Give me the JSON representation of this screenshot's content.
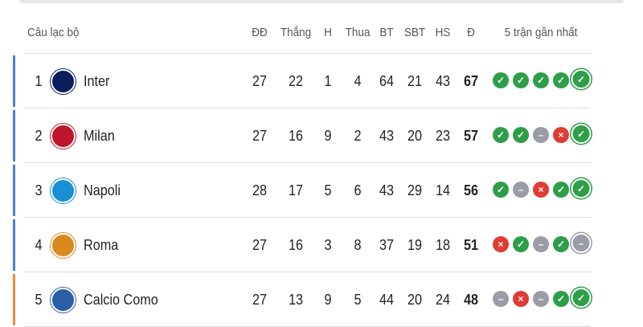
{
  "header": {
    "club": "Câu lạc bộ",
    "played": "ĐĐ",
    "won": "Thắng",
    "drawn": "H",
    "lost": "Thua",
    "gf": "BT",
    "ga": "SBT",
    "gd": "HS",
    "points": "Đ",
    "form": "5 trận gần nhất"
  },
  "colors": {
    "win": "#2e9e48",
    "draw": "#9a9ca6",
    "loss": "#e03b35",
    "champions": "#4a7fd6",
    "europa": "#f08a3c"
  },
  "rows": [
    {
      "pos": "1",
      "name": "Inter",
      "played": "27",
      "won": "22",
      "drawn": "1",
      "lost": "4",
      "gf": "64",
      "ga": "21",
      "gd": "43",
      "points": "67",
      "form": [
        "W",
        "W",
        "W",
        "W",
        "W"
      ],
      "zone": "champions",
      "logo_color": "#0a1e5e"
    },
    {
      "pos": "2",
      "name": "Milan",
      "played": "27",
      "won": "16",
      "drawn": "9",
      "lost": "2",
      "gf": "43",
      "ga": "20",
      "gd": "23",
      "points": "57",
      "form": [
        "W",
        "W",
        "D",
        "L",
        "W"
      ],
      "zone": "champions",
      "logo_color": "#c0152b"
    },
    {
      "pos": "3",
      "name": "Napoli",
      "played": "28",
      "won": "17",
      "drawn": "5",
      "lost": "6",
      "gf": "43",
      "ga": "29",
      "gd": "14",
      "points": "56",
      "form": [
        "W",
        "D",
        "L",
        "W",
        "W"
      ],
      "zone": "champions",
      "logo_color": "#1a8fd6"
    },
    {
      "pos": "4",
      "name": "Roma",
      "played": "27",
      "won": "16",
      "drawn": "3",
      "lost": "8",
      "gf": "37",
      "ga": "19",
      "gd": "18",
      "points": "51",
      "form": [
        "L",
        "W",
        "D",
        "W",
        "D"
      ],
      "zone": "champions",
      "logo_color": "#d98a1f"
    },
    {
      "pos": "5",
      "name": "Calcio Como",
      "played": "27",
      "won": "13",
      "drawn": "9",
      "lost": "5",
      "gf": "44",
      "ga": "20",
      "gd": "24",
      "points": "48",
      "form": [
        "D",
        "L",
        "D",
        "W",
        "W"
      ],
      "zone": "europa",
      "logo_color": "#2a5fa8"
    }
  ]
}
